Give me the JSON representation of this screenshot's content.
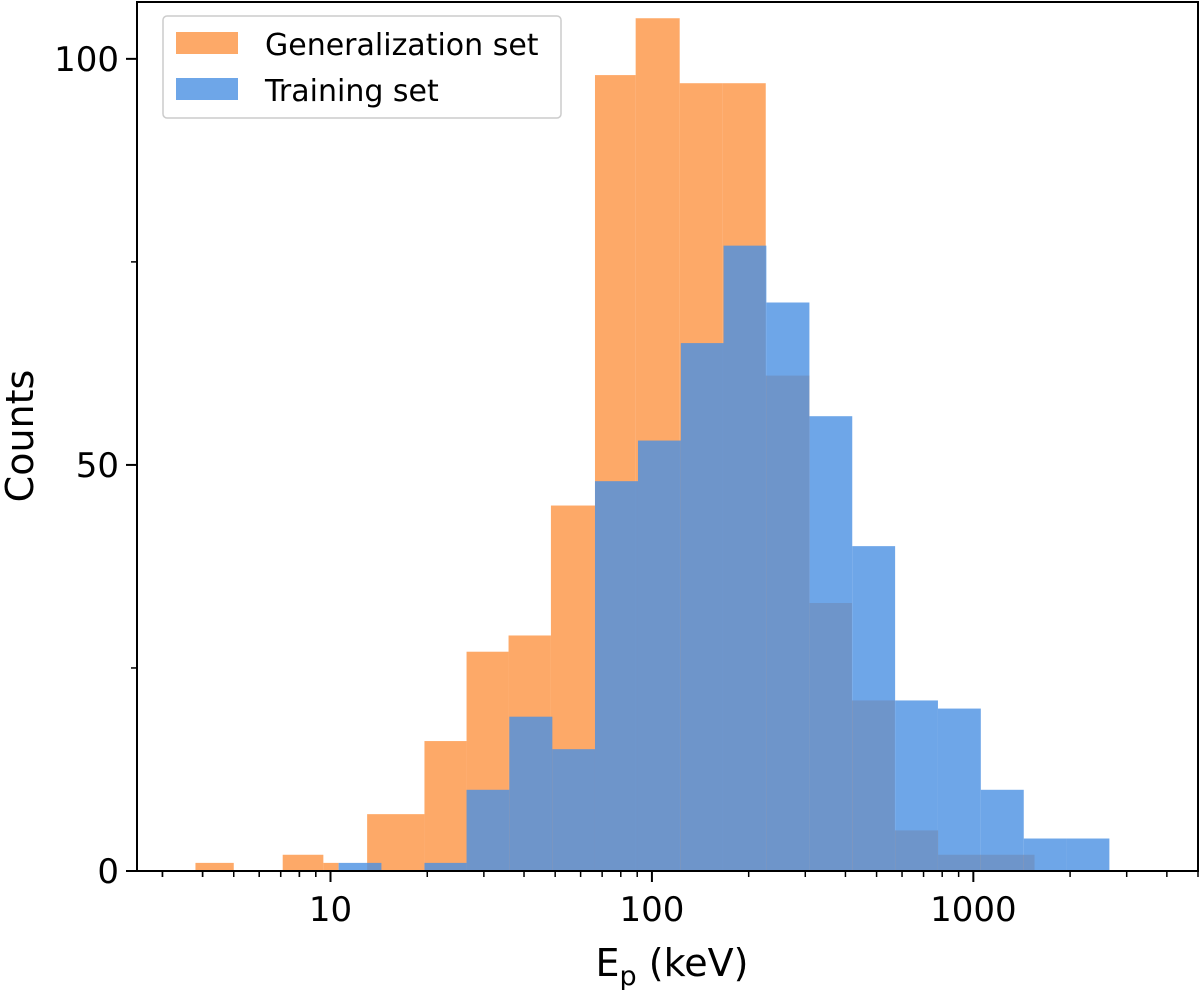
{
  "chart_data": {
    "type": "bar",
    "title": "",
    "xlabel_main": "E",
    "xlabel_sub": "p",
    "xlabel_unit": " (keV)",
    "ylabel": "Counts",
    "x_scale": "log",
    "xlim": [
      2.5,
      5000
    ],
    "ylim": [
      0,
      107
    ],
    "x_ticks": [
      {
        "value": 10,
        "label": "10"
      },
      {
        "value": 100,
        "label": "100"
      },
      {
        "value": 1000,
        "label": "1000"
      }
    ],
    "y_ticks": [
      {
        "value": 0,
        "label": "0"
      },
      {
        "value": 50,
        "label": "50"
      },
      {
        "value": 100,
        "label": "100"
      }
    ],
    "legend_position": "top-left",
    "grid": false,
    "series": [
      {
        "name": "Generalization set",
        "color": "#fd9a4d",
        "opacity": 0.85,
        "bins": [
          {
            "x0": 3.8,
            "x1": 5.0,
            "count": 1
          },
          {
            "x0": 7.1,
            "x1": 9.5,
            "count": 2
          },
          {
            "x0": 9.5,
            "x1": 10.6,
            "count": 1
          },
          {
            "x0": 13.0,
            "x1": 19.6,
            "count": 7
          },
          {
            "x0": 19.6,
            "x1": 26.5,
            "count": 16
          },
          {
            "x0": 26.5,
            "x1": 35.8,
            "count": 27
          },
          {
            "x0": 35.8,
            "x1": 48.5,
            "count": 29
          },
          {
            "x0": 48.5,
            "x1": 66.5,
            "count": 45
          },
          {
            "x0": 66.5,
            "x1": 89.0,
            "count": 98
          },
          {
            "x0": 89.0,
            "x1": 122.0,
            "count": 105
          },
          {
            "x0": 122.0,
            "x1": 166.0,
            "count": 97
          },
          {
            "x0": 166.0,
            "x1": 226.0,
            "count": 97
          },
          {
            "x0": 226.0,
            "x1": 309.0,
            "count": 61
          },
          {
            "x0": 309.0,
            "x1": 419.0,
            "count": 33
          },
          {
            "x0": 419.0,
            "x1": 570.0,
            "count": 21
          },
          {
            "x0": 570.0,
            "x1": 777.0,
            "count": 5
          },
          {
            "x0": 777.0,
            "x1": 1056.0,
            "count": 2
          },
          {
            "x0": 1056.0,
            "x1": 1550.0,
            "count": 2
          }
        ]
      },
      {
        "name": "Training set",
        "color": "#4a90e2",
        "opacity": 0.8,
        "bins": [
          {
            "x0": 10.6,
            "x1": 14.4,
            "count": 1
          },
          {
            "x0": 19.6,
            "x1": 26.5,
            "count": 1
          },
          {
            "x0": 26.5,
            "x1": 36.0,
            "count": 10
          },
          {
            "x0": 36.0,
            "x1": 49.0,
            "count": 19
          },
          {
            "x0": 49.0,
            "x1": 66.5,
            "count": 15
          },
          {
            "x0": 66.5,
            "x1": 90.5,
            "count": 48
          },
          {
            "x0": 90.5,
            "x1": 123.0,
            "count": 53
          },
          {
            "x0": 123.0,
            "x1": 167.0,
            "count": 65
          },
          {
            "x0": 167.0,
            "x1": 227.0,
            "count": 77
          },
          {
            "x0": 227.0,
            "x1": 309.0,
            "count": 70
          },
          {
            "x0": 309.0,
            "x1": 420.0,
            "count": 56
          },
          {
            "x0": 420.0,
            "x1": 571.0,
            "count": 40
          },
          {
            "x0": 571.0,
            "x1": 776.0,
            "count": 21
          },
          {
            "x0": 776.0,
            "x1": 1055.0,
            "count": 20
          },
          {
            "x0": 1055.0,
            "x1": 1435.0,
            "count": 10
          },
          {
            "x0": 1435.0,
            "x1": 1950.0,
            "count": 4
          },
          {
            "x0": 1950.0,
            "x1": 2650.0,
            "count": 4
          }
        ]
      }
    ]
  }
}
